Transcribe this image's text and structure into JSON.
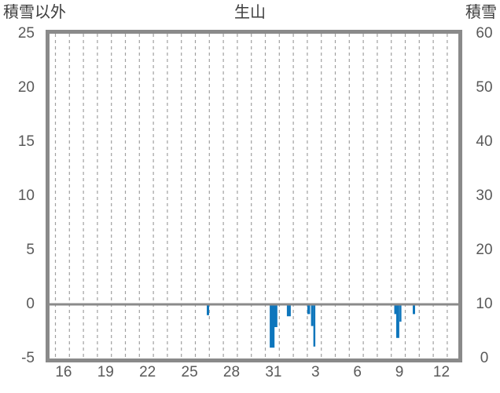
{
  "header": {
    "left_axis_title": "積雪以外",
    "station_title": "生山",
    "right_axis_title": "積雪"
  },
  "chart_data": {
    "type": "bar",
    "title": "生山",
    "left_axis": {
      "label": "積雪以外",
      "ticks": [
        25,
        20,
        15,
        10,
        5,
        0,
        -5
      ],
      "min": -5,
      "max": 25
    },
    "right_axis": {
      "label": "積雪",
      "ticks": [
        60,
        50,
        40,
        30,
        20,
        10,
        0
      ],
      "min": 0,
      "max": 60
    },
    "x_axis": {
      "tick_labels": [
        "16",
        "19",
        "22",
        "25",
        "28",
        "31",
        "3",
        "6",
        "9",
        "12"
      ],
      "label_every_days": 3,
      "gridline_count": 29,
      "period": "Dec 16 - Jan 13",
      "grid": "daily dashed vertical lines"
    },
    "zero_line_value": 0,
    "legend_position": "none",
    "bars_note": "sub-daily precipitation (non-snow) bars hanging below the 0 line; t = days after first gridline (Dec 16 00:00), w = width in days, v = value on left axis",
    "bars": [
      {
        "day": "12/26",
        "t": 10.84,
        "w": 0.17,
        "v": -1.0
      },
      {
        "day": "12/31",
        "t": 15.34,
        "w": 0.34,
        "v": -4.0
      },
      {
        "day": "12/31",
        "t": 15.67,
        "w": 0.22,
        "v": -2.1
      },
      {
        "day": "1/1",
        "t": 16.57,
        "w": 0.28,
        "v": -1.1
      },
      {
        "day": "1/3",
        "t": 18.03,
        "w": 0.2,
        "v": -0.9
      },
      {
        "day": "1/3",
        "t": 18.29,
        "w": 0.17,
        "v": -2.0
      },
      {
        "day": "1/3",
        "t": 18.46,
        "w": 0.14,
        "v": -3.9
      },
      {
        "day": "1/9",
        "t": 24.24,
        "w": 0.14,
        "v": -0.9
      },
      {
        "day": "1/9",
        "t": 24.38,
        "w": 0.22,
        "v": -3.1
      },
      {
        "day": "1/9",
        "t": 24.61,
        "w": 0.14,
        "v": -1.6
      },
      {
        "day": "1/10",
        "t": 25.56,
        "w": 0.17,
        "v": -0.9
      }
    ],
    "colors": {
      "bar": "#0e76bc",
      "axis_frame": "#8a8a8a",
      "gridline": "#a0a0a0",
      "tick_text": "#595959",
      "header_text": "#3d3d3d",
      "background": "#ffffff"
    }
  }
}
